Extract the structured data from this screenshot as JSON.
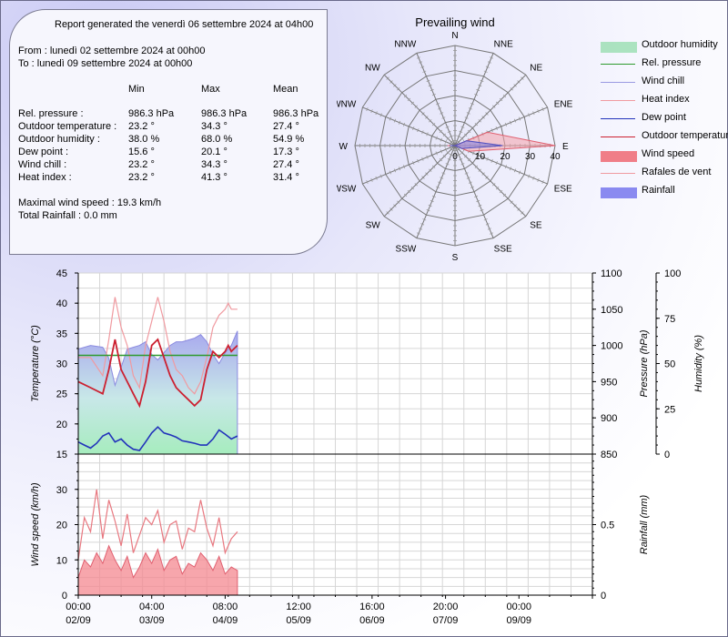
{
  "report": {
    "title": "Report generated the venerdì 06 settembre 2024 at 04h00",
    "from": "From : lunedì 02 settembre 2024 at 00h00",
    "to": "To : lunedì 09 settembre 2024 at 00h00",
    "columns": [
      "Min",
      "Max",
      "Mean"
    ],
    "rows": [
      {
        "label": "Rel. pressure :",
        "min": "986.3 hPa",
        "max": "986.3 hPa",
        "mean": "986.3 hPa"
      },
      {
        "label": "Outdoor temperature :",
        "min": "23.2 °",
        "max": "34.3 °",
        "mean": "27.4 °"
      },
      {
        "label": "Outdoor humidity :",
        "min": "38.0 %",
        "max": "68.0 %",
        "mean": "54.9 %"
      },
      {
        "label": "Dew point :",
        "min": "15.6 °",
        "max": "20.1 °",
        "mean": "17.3 °"
      },
      {
        "label": "Wind chill :",
        "min": "23.2 °",
        "max": "34.3 °",
        "mean": "27.4 °"
      },
      {
        "label": "Heat index :",
        "min": "23.2 °",
        "max": "41.3 °",
        "mean": "31.4 °"
      }
    ],
    "max_wind": "Maximal wind speed : 19.3 km/h",
    "rainfall": "Total Rainfall : 0.0 mm"
  },
  "legend": [
    {
      "label": "Outdoor humidity",
      "color": "#9fe0b6",
      "kind": "fill"
    },
    {
      "label": "Rel. pressure",
      "color": "#2e9a2e",
      "kind": "line"
    },
    {
      "label": "Wind chill",
      "color": "#9a9ae2",
      "kind": "line"
    },
    {
      "label": "Heat index",
      "color": "#f09aa0",
      "kind": "line"
    },
    {
      "label": "Dew point",
      "color": "#2233bb",
      "kind": "line"
    },
    {
      "label": "Outdoor temperature",
      "color": "#cc2030",
      "kind": "line"
    },
    {
      "label": "Wind speed",
      "color": "#f06a74",
      "kind": "fill"
    },
    {
      "label": "Rafales de vent",
      "color": "#f09aa0",
      "kind": "line"
    },
    {
      "label": "Rainfall",
      "color": "#7878ee",
      "kind": "fill"
    }
  ],
  "chart_data": [
    {
      "type": "rose",
      "title": "Prevailing wind",
      "directions": [
        "N",
        "NNE",
        "NE",
        "ENE",
        "E",
        "ESE",
        "SE",
        "SSE",
        "S",
        "SSW",
        "SW",
        "WSW",
        "W",
        "WNW",
        "NW",
        "NNW"
      ],
      "radial_ticks": [
        0,
        10,
        20,
        30,
        40
      ],
      "rmax": 40,
      "gust_values": [
        0,
        0,
        0,
        14,
        40,
        6,
        0,
        0,
        0,
        0,
        0,
        0,
        3,
        0,
        0,
        0
      ],
      "wind_values": [
        0,
        0,
        0,
        5,
        19,
        3,
        0,
        0,
        0,
        0,
        0,
        0,
        2,
        0,
        0,
        0
      ]
    },
    {
      "type": "line",
      "x_hours_range": [
        0,
        168
      ],
      "data_end_hour": 52,
      "x_ticks": [
        {
          "hour": 0,
          "time": "00:00",
          "date": "02/09"
        },
        {
          "hour": 24,
          "time": "04:00",
          "date": "03/09"
        },
        {
          "hour": 48,
          "time": "08:00",
          "date": "04/09"
        },
        {
          "hour": 72,
          "time": "12:00",
          "date": "05/09"
        },
        {
          "hour": 96,
          "time": "16:00",
          "date": "06/09"
        },
        {
          "hour": 120,
          "time": "20:00",
          "date": "07/09"
        },
        {
          "hour": 144,
          "time": "00:00",
          "date": "09/09"
        }
      ],
      "temperature_axis": {
        "label": "Temperature (°C)",
        "ylim": [
          15,
          45
        ],
        "ticks": [
          15,
          20,
          25,
          30,
          35,
          40,
          45
        ]
      },
      "pressure_axis": {
        "label": "Pressure (hPa)",
        "ylim": [
          850,
          1100
        ],
        "ticks": [
          850,
          900,
          950,
          1000,
          1050,
          1100
        ]
      },
      "humidity_axis": {
        "label": "Humidity (%)",
        "ylim": [
          0,
          100
        ],
        "ticks": [
          0,
          25,
          50,
          75,
          100
        ]
      },
      "series": {
        "outdoor_temperature": {
          "x": [
            0,
            4,
            8,
            10,
            12,
            14,
            16,
            18,
            20,
            22,
            24,
            26,
            28,
            30,
            32,
            34,
            36,
            38,
            40,
            42,
            44,
            46,
            48,
            49,
            50,
            52
          ],
          "y": [
            27,
            26,
            25,
            29,
            34,
            29,
            27,
            25,
            23,
            27,
            33,
            34,
            31,
            28,
            26,
            25,
            24,
            23,
            24,
            29,
            32,
            31,
            32,
            33,
            32,
            33
          ]
        },
        "heat_index": {
          "x": [
            0,
            4,
            8,
            10,
            12,
            14,
            16,
            18,
            20,
            22,
            24,
            26,
            28,
            30,
            32,
            34,
            36,
            38,
            40,
            42,
            44,
            46,
            48,
            49,
            50,
            52
          ],
          "y": [
            31,
            31,
            28,
            34,
            41,
            36,
            33,
            28,
            26,
            33,
            37,
            41,
            37,
            32,
            29,
            28,
            26,
            25,
            27,
            31,
            36,
            38,
            39,
            40,
            39,
            39
          ]
        },
        "wind_chill": {
          "x": [
            0,
            4,
            8,
            10,
            12,
            14,
            16,
            18,
            20,
            22,
            24,
            26,
            28,
            30,
            32,
            34,
            36,
            38,
            40,
            42,
            44,
            46,
            48,
            49,
            50,
            52
          ],
          "y": [
            27,
            26,
            25,
            29,
            34,
            29,
            27,
            25,
            23,
            27,
            33,
            34,
            31,
            28,
            26,
            25,
            24,
            23,
            24,
            29,
            32,
            31,
            32,
            33,
            32,
            33
          ]
        },
        "dew_point": {
          "x": [
            0,
            2,
            4,
            6,
            8,
            10,
            12,
            14,
            16,
            18,
            20,
            22,
            24,
            26,
            28,
            30,
            32,
            34,
            36,
            38,
            40,
            42,
            44,
            46,
            48,
            50,
            52
          ],
          "y": [
            17,
            16.5,
            16,
            16.8,
            18,
            18.5,
            17,
            17.5,
            16.5,
            15.8,
            15.6,
            17,
            18.5,
            19.5,
            18.5,
            18.2,
            17.8,
            17.2,
            17,
            16.8,
            16.5,
            16.5,
            17.5,
            19,
            18.3,
            17.5,
            18
          ]
        },
        "rel_pressure": {
          "x": [
            0,
            52
          ],
          "y": [
            986.3,
            986.3
          ]
        },
        "outdoor_humidity": {
          "x": [
            0,
            4,
            8,
            10,
            12,
            14,
            16,
            18,
            20,
            22,
            24,
            26,
            28,
            30,
            32,
            34,
            36,
            38,
            40,
            42,
            44,
            46,
            48,
            50,
            52
          ],
          "y": [
            58,
            60,
            59,
            53,
            38,
            48,
            58,
            59,
            60,
            62,
            55,
            52,
            56,
            60,
            62,
            62,
            63,
            64,
            66,
            62,
            55,
            50,
            56,
            60,
            68
          ]
        }
      }
    },
    {
      "type": "area",
      "windspeed_axis": {
        "label": "Wind speed (km/h)",
        "ylim": [
          0,
          40
        ],
        "ticks": [
          0,
          10,
          20,
          30
        ]
      },
      "rainfall_axis": {
        "label": "Rainfall (mm)",
        "ylim": [
          0,
          1
        ],
        "ticks": [
          0,
          0.5
        ]
      },
      "series": {
        "wind_speed": {
          "x": [
            0,
            2,
            4,
            6,
            8,
            10,
            12,
            14,
            16,
            18,
            20,
            22,
            24,
            26,
            28,
            30,
            32,
            34,
            36,
            38,
            40,
            42,
            44,
            46,
            48,
            50,
            52
          ],
          "y": [
            5,
            10,
            8,
            12,
            9,
            14,
            10,
            7,
            11,
            5,
            8,
            12,
            9,
            13,
            7,
            10,
            11,
            6,
            9,
            8,
            12,
            10,
            7,
            11,
            6,
            8,
            7
          ]
        },
        "rafales_de_vent": {
          "x": [
            0,
            2,
            4,
            6,
            8,
            10,
            12,
            14,
            16,
            18,
            20,
            22,
            24,
            26,
            28,
            30,
            32,
            34,
            36,
            38,
            40,
            42,
            44,
            46,
            48,
            50,
            52
          ],
          "y": [
            10,
            22,
            18,
            30,
            16,
            27,
            21,
            14,
            23,
            12,
            17,
            22,
            20,
            24,
            15,
            20,
            21,
            13,
            19,
            18,
            27,
            19,
            14,
            22,
            12,
            16,
            18
          ]
        },
        "rainfall": {
          "x": [
            0,
            52
          ],
          "y": [
            0,
            0
          ]
        }
      }
    }
  ]
}
